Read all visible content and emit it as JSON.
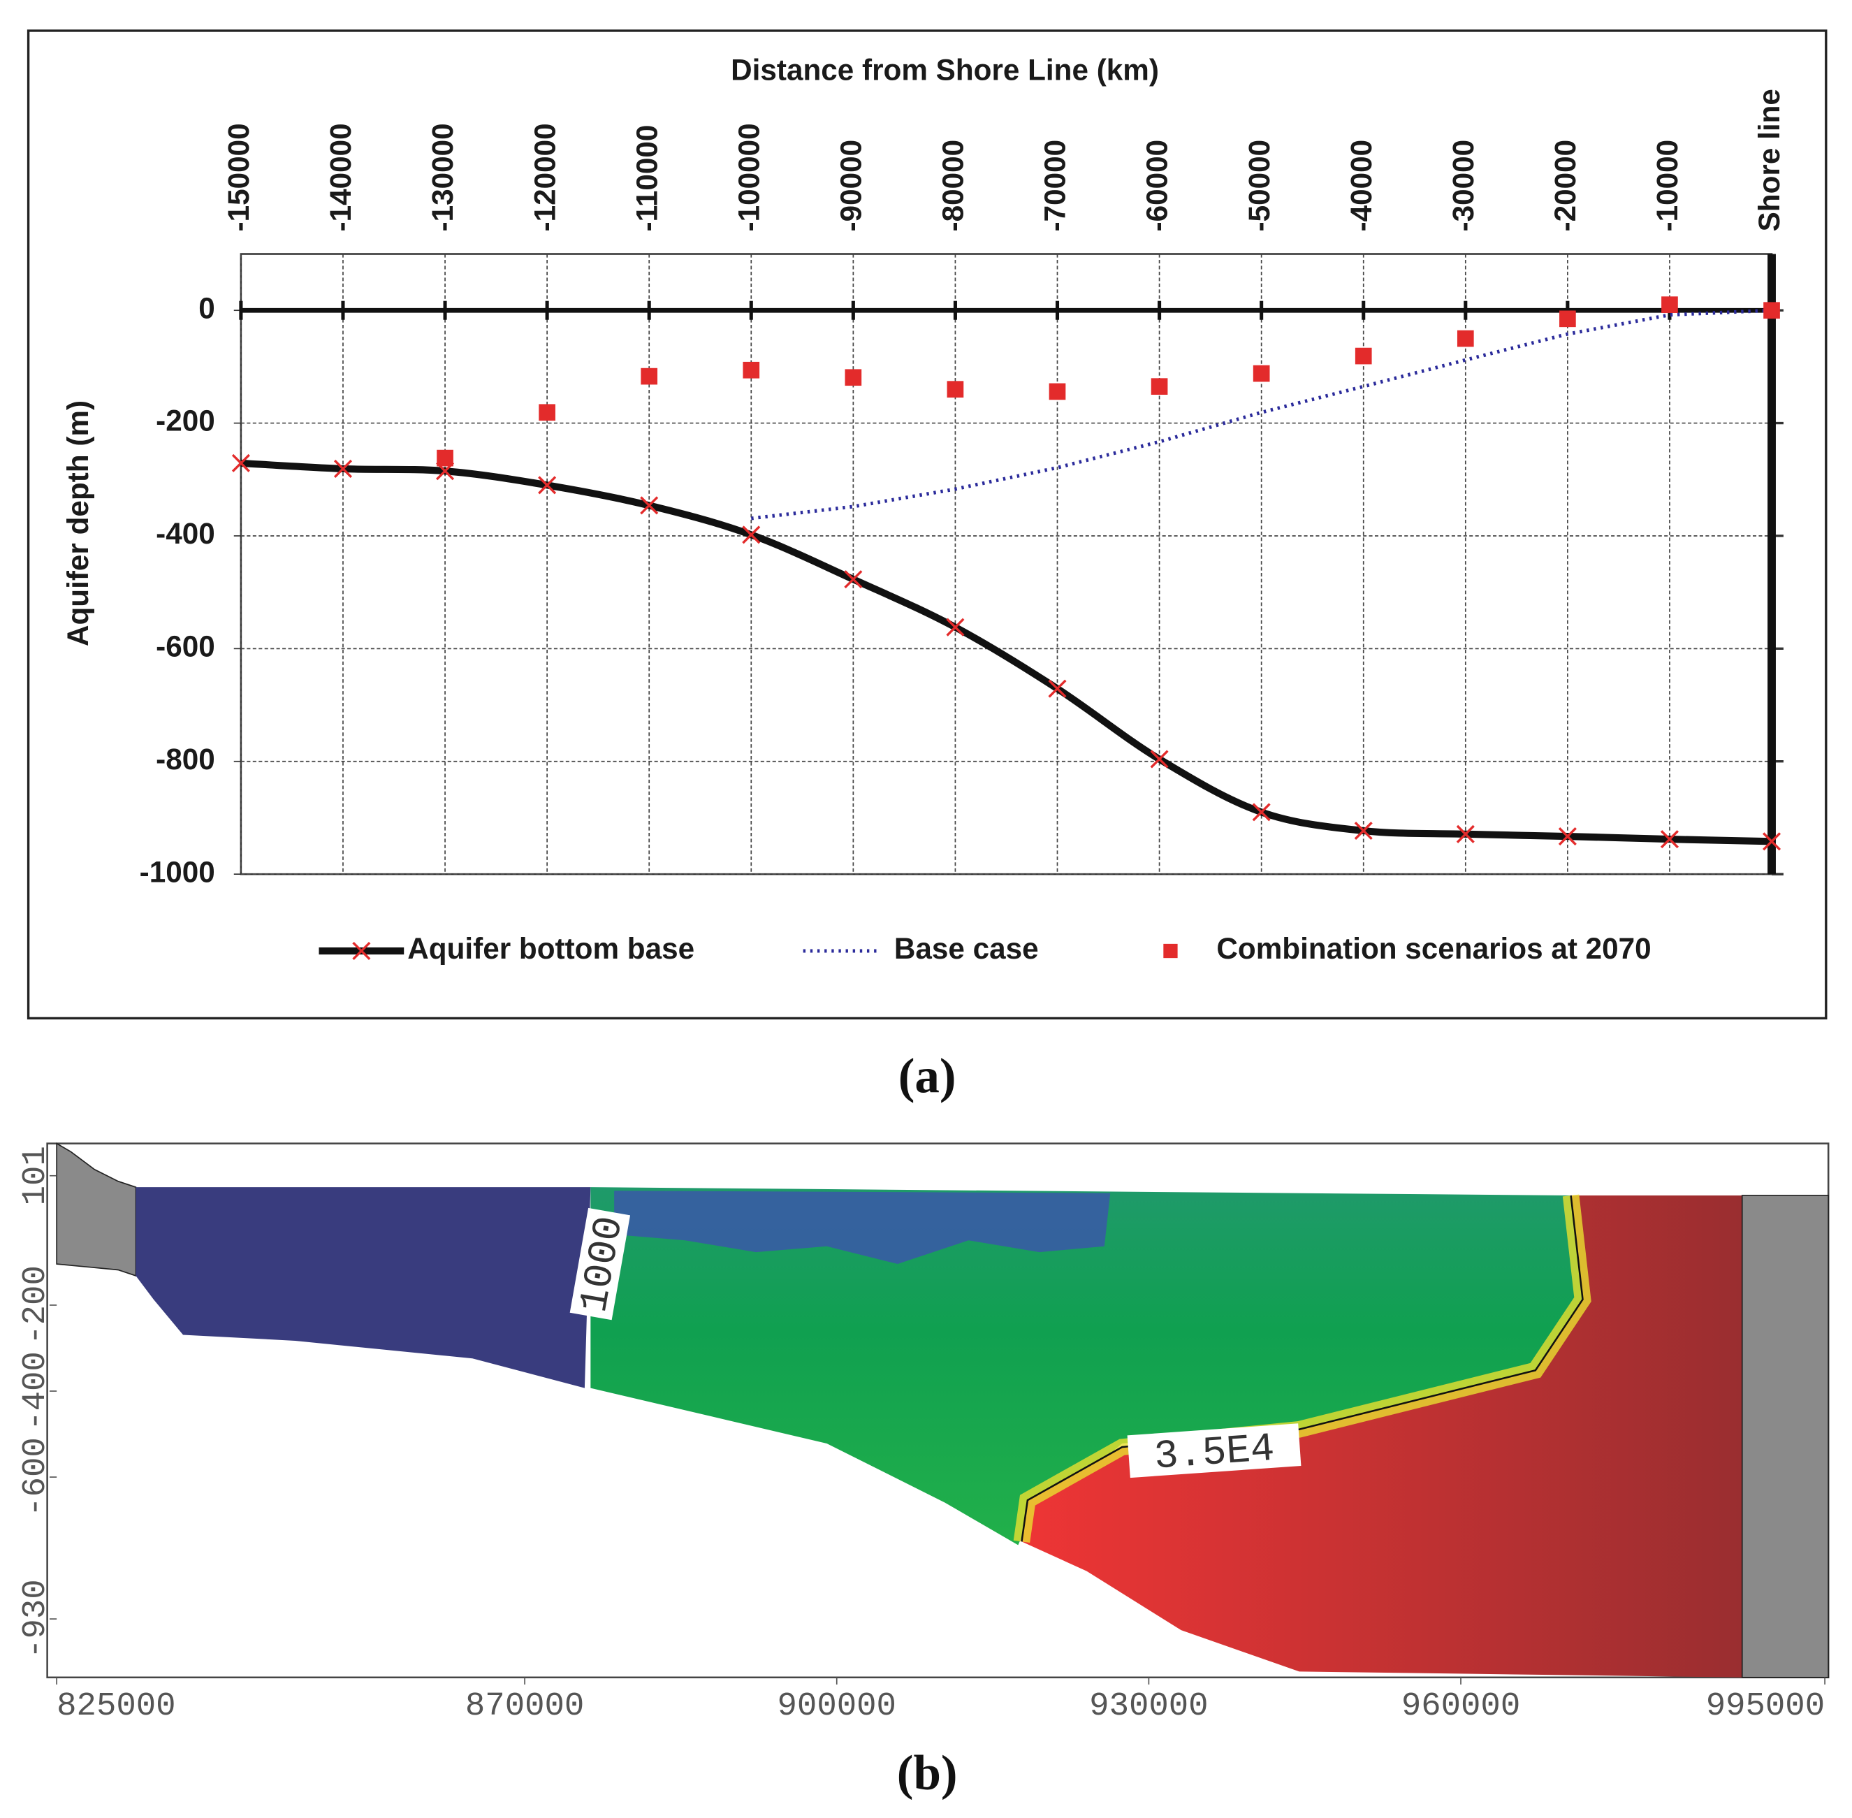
{
  "chart_data": [
    {
      "type": "line",
      "title": "Distance from Shore Line (km)",
      "y_label": "Aquifer depth (m)",
      "caption": "(a)",
      "x": [
        -150000,
        -140000,
        -130000,
        -120000,
        -110000,
        -100000,
        -90000,
        -80000,
        -70000,
        -60000,
        -50000,
        -40000,
        -30000,
        -20000,
        -10000,
        0
      ],
      "xlim": [
        -150000,
        0
      ],
      "xticks": [
        -150000,
        -140000,
        -130000,
        -120000,
        -110000,
        -100000,
        -90000,
        -80000,
        -70000,
        -60000,
        -50000,
        -40000,
        -30000,
        -20000,
        -10000,
        {
          "value": 0,
          "label": "Shore line"
        }
      ],
      "ylim": [
        -1000,
        100
      ],
      "yticks": [
        0,
        -200,
        -400,
        -600,
        -800,
        -1000
      ],
      "grid": true,
      "series": [
        {
          "name": "Aquifer bottom base",
          "color": "#111111",
          "style": "line",
          "marker_color": "#e32b2b",
          "values": [
            -271,
            -281,
            -285,
            -310,
            -346,
            -398,
            -477,
            -562,
            -671,
            -796,
            -890,
            -923,
            -929,
            -933,
            -938,
            -942
          ]
        },
        {
          "name": "Base case",
          "color": "#2b2b9b",
          "style": "dotted",
          "values": [
            null,
            null,
            null,
            null,
            null,
            -369,
            -348,
            -317,
            -279,
            -233,
            -181,
            -135,
            -88,
            -42,
            -8,
            0
          ]
        },
        {
          "name": "Combination scenarios at 2070",
          "color": "#e32b2b",
          "style": "markers",
          "values": [
            null,
            null,
            -262,
            -181,
            -117,
            -106,
            -119,
            -140,
            -144,
            -135,
            -112,
            -81,
            -50,
            -15,
            10,
            0
          ]
        }
      ]
    },
    {
      "type": "contour",
      "caption": "(b)",
      "xlim": [
        825000,
        995000
      ],
      "xticks": [
        825000,
        870000,
        900000,
        930000,
        960000,
        995000
      ],
      "ylim": [
        -1066,
        176
      ],
      "yticks": [
        101,
        -200,
        -400,
        -600,
        -930
      ],
      "annotations": [
        "1000",
        "3.5E4"
      ]
    }
  ]
}
